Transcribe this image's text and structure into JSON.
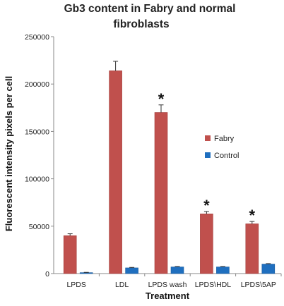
{
  "chart_data": {
    "type": "bar",
    "title_lines": [
      "Gb3 content in Fabry and normal",
      "fibroblasts"
    ],
    "xlabel": "Treatment",
    "ylabel": "Fluorescent intensity pixels per cell",
    "categories": [
      "LPDS",
      "LDL",
      "LPDS wash",
      "LPDS\\HDL",
      "LPDS\\5AP"
    ],
    "series": [
      {
        "name": "Fabry",
        "color": "#c0504d",
        "values": [
          40000,
          214000,
          170000,
          63000,
          52500
        ],
        "errors": [
          2000,
          10000,
          8000,
          2500,
          2500
        ]
      },
      {
        "name": "Control",
        "color": "#1f6fbf",
        "values": [
          1000,
          6000,
          7000,
          7000,
          10000
        ],
        "errors": [
          300,
          500,
          500,
          500,
          500
        ]
      }
    ],
    "ylim": [
      0,
      250000
    ],
    "yticks": [
      0,
      50000,
      100000,
      150000,
      200000,
      250000
    ],
    "ytick_labels": [
      "0",
      "50000",
      "100000",
      "150000",
      "200000",
      "250000"
    ],
    "annotations": [
      {
        "category_index": 2,
        "series": "Fabry",
        "text": "*"
      },
      {
        "category_index": 3,
        "series": "Fabry",
        "text": "*"
      },
      {
        "category_index": 4,
        "series": "Fabry",
        "text": "*"
      }
    ],
    "legend_position": "right",
    "grid": false
  }
}
